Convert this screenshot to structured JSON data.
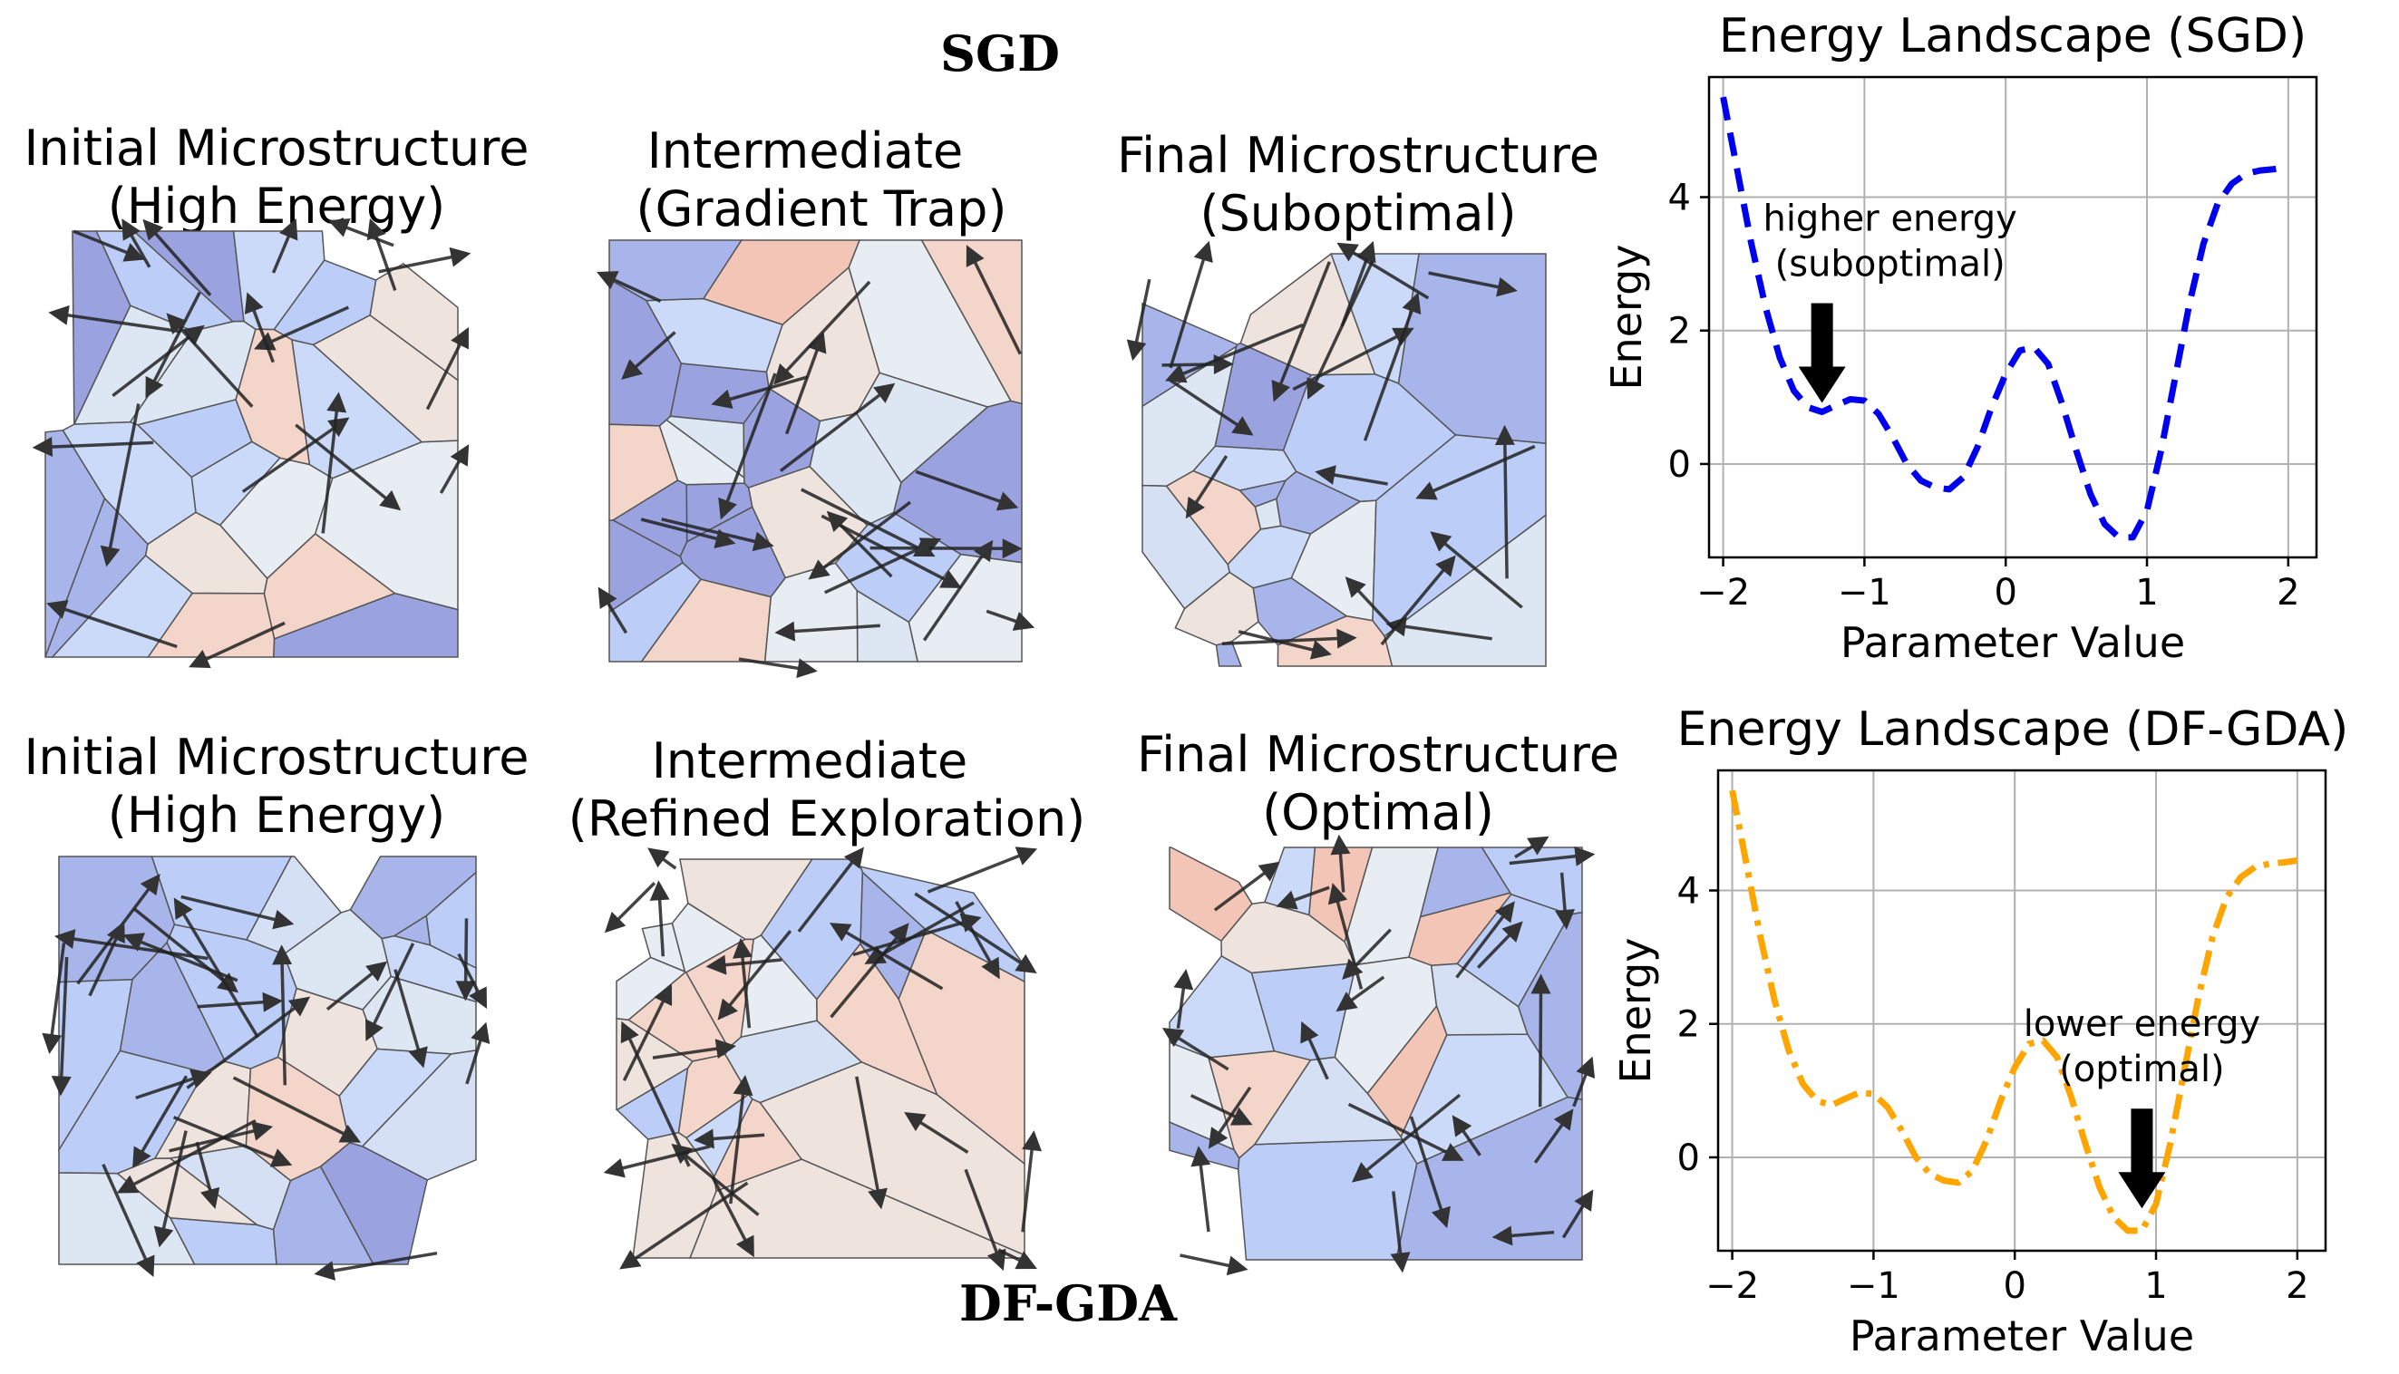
{
  "figure": {
    "sgd_label": "SGD",
    "dfgda_label": "DF-GDA"
  },
  "panels": [
    {
      "title_lines": [
        "Initial Microstructure",
        "(High Energy)"
      ]
    },
    {
      "title_lines": [
        "Intermediate",
        "(Gradient Trap)"
      ]
    },
    {
      "title_lines": [
        "Final Microstructure",
        "(Suboptimal)"
      ]
    },
    {
      "title_lines": [
        "Initial Microstructure",
        "(High Energy)"
      ]
    },
    {
      "title_lines": [
        "Intermediate",
        "(Refined Exploration)"
      ]
    },
    {
      "title_lines": [
        "Final Microstructure",
        "(Optimal)"
      ]
    }
  ],
  "colors": {
    "cell_palette": [
      "#9aa3e0",
      "#a8b5ea",
      "#bccdf7",
      "#ccdaf9",
      "#dde6f3",
      "#e8edf3",
      "#efe3de",
      "#f3d5c9",
      "#f3c5b6",
      "#d6e0f5"
    ],
    "arrow": "#111111",
    "cell_edge": "#555555",
    "sgd_line": "#0000ee",
    "dfgda_line": "#ffa500",
    "grid": "#b0b0b0"
  },
  "chart_data": [
    {
      "type": "line",
      "title": "Energy Landscape (SGD)",
      "xlabel": "Parameter Value",
      "ylabel": "Energy",
      "xlim": [
        -2.1,
        2.2
      ],
      "ylim": [
        -1.4,
        5.8
      ],
      "xticks": [
        -2,
        -1,
        0,
        1,
        2
      ],
      "xtick_labels": [
        "−2",
        "−1",
        "0",
        "1",
        "2"
      ],
      "yticks": [
        0,
        2,
        4
      ],
      "ytick_labels": [
        "0",
        "2",
        "4"
      ],
      "grid": true,
      "line_style": "dashed",
      "series": [
        {
          "x": [
            -2.0,
            -1.9,
            -1.8,
            -1.7,
            -1.6,
            -1.5,
            -1.4,
            -1.3,
            -1.2,
            -1.1,
            -1.0,
            -0.9,
            -0.8,
            -0.7,
            -0.6,
            -0.5,
            -0.4,
            -0.3,
            -0.2,
            -0.1,
            0.0,
            0.1,
            0.2,
            0.3,
            0.4,
            0.5,
            0.6,
            0.7,
            0.8,
            0.9,
            1.0,
            1.1,
            1.2,
            1.3,
            1.4,
            1.5,
            1.6,
            1.7,
            1.8,
            1.9,
            2.0
          ],
          "values": [
            5.5,
            4.4,
            3.3,
            2.35,
            1.6,
            1.1,
            0.85,
            0.78,
            0.88,
            0.97,
            0.95,
            0.75,
            0.4,
            0.0,
            -0.25,
            -0.35,
            -0.38,
            -0.2,
            0.25,
            0.85,
            1.35,
            1.7,
            1.75,
            1.5,
            0.9,
            0.2,
            -0.45,
            -0.9,
            -1.1,
            -1.1,
            -0.7,
            0.2,
            1.3,
            2.4,
            3.3,
            3.9,
            4.2,
            4.35,
            4.4,
            4.42,
            4.45
          ]
        }
      ],
      "annotation": {
        "lines": [
          "higher energy",
          "(suboptimal)"
        ],
        "x": -1.3,
        "y": 0.78
      }
    },
    {
      "type": "line",
      "title": "Energy Landscape (DF-GDA)",
      "xlabel": "Parameter Value",
      "ylabel": "Energy",
      "xlim": [
        -2.1,
        2.2
      ],
      "ylim": [
        -1.4,
        5.8
      ],
      "xticks": [
        -2,
        -1,
        0,
        1,
        2
      ],
      "xtick_labels": [
        "−2",
        "−1",
        "0",
        "1",
        "2"
      ],
      "yticks": [
        0,
        2,
        4
      ],
      "ytick_labels": [
        "0",
        "2",
        "4"
      ],
      "grid": true,
      "line_style": "dashdot",
      "series": [
        {
          "x": [
            -2.0,
            -1.9,
            -1.8,
            -1.7,
            -1.6,
            -1.5,
            -1.4,
            -1.3,
            -1.2,
            -1.1,
            -1.0,
            -0.9,
            -0.8,
            -0.7,
            -0.6,
            -0.5,
            -0.4,
            -0.3,
            -0.2,
            -0.1,
            0.0,
            0.1,
            0.2,
            0.3,
            0.4,
            0.5,
            0.6,
            0.7,
            0.8,
            0.9,
            1.0,
            1.1,
            1.2,
            1.3,
            1.4,
            1.5,
            1.6,
            1.7,
            1.8,
            1.9,
            2.0
          ],
          "values": [
            5.5,
            4.4,
            3.3,
            2.35,
            1.6,
            1.1,
            0.85,
            0.78,
            0.88,
            0.97,
            0.95,
            0.75,
            0.4,
            0.0,
            -0.25,
            -0.35,
            -0.38,
            -0.2,
            0.25,
            0.85,
            1.35,
            1.7,
            1.75,
            1.5,
            0.9,
            0.2,
            -0.45,
            -0.9,
            -1.1,
            -1.1,
            -0.7,
            0.2,
            1.3,
            2.4,
            3.3,
            3.9,
            4.2,
            4.35,
            4.4,
            4.42,
            4.45
          ]
        }
      ],
      "annotation": {
        "lines": [
          "lower energy",
          "(optimal)"
        ],
        "x": 0.9,
        "y": -0.9
      }
    }
  ]
}
